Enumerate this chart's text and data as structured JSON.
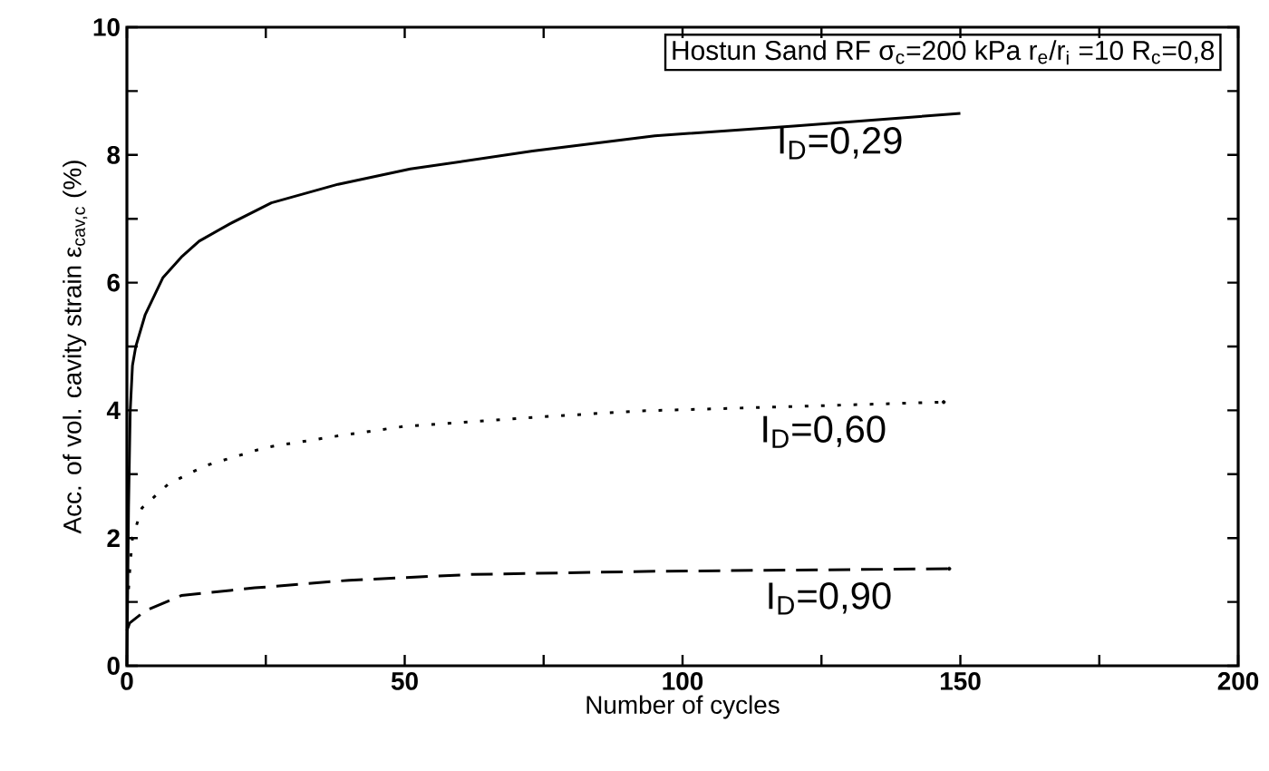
{
  "chart_data": {
    "type": "line",
    "title": "Hostun Sand RF   σ$_{c}$=200 kPa   r$_{e}$/r$_{i}$ =10   R$_{c}$=0,8",
    "xlabel": "Number of cycles",
    "ylabel": "Acc. of vol. cavity strain  ε$_{cav,c}$ (%)",
    "xlim": [
      0,
      200
    ],
    "ylim": [
      0,
      10
    ],
    "xticks": [
      0,
      {
        "value": 25,
        "label": null
      },
      50,
      {
        "value": 75,
        "label": null
      },
      100,
      {
        "value": 125,
        "label": null
      },
      150,
      {
        "value": 175,
        "label": null
      },
      200
    ],
    "yticks": [
      0,
      {
        "value": 1,
        "label": null
      },
      2,
      {
        "value": 3,
        "label": null
      },
      4,
      {
        "value": 5,
        "label": null
      },
      6,
      {
        "value": 7,
        "label": null
      },
      8,
      {
        "value": 9,
        "label": null
      },
      10
    ],
    "grid": false,
    "legend": false,
    "marker": "none",
    "series": [
      {
        "name": "I$_{D}$=0,29",
        "color": "#000000",
        "line_style": "solid",
        "x": [
          0,
          0.3,
          0.6,
          1,
          1.6,
          3.3,
          6.5,
          9.8,
          13,
          18.5,
          26,
          38,
          51,
          73,
          95,
          120,
          150
        ],
        "values": [
          0,
          2.5,
          4,
          4.7,
          5.0,
          5.5,
          6.08,
          6.4,
          6.65,
          6.92,
          7.25,
          7.54,
          7.78,
          8.06,
          8.3,
          8.45,
          8.65
        ]
      },
      {
        "name": "I$_{D}$=0,60",
        "color": "#000000",
        "line_style": "dotted",
        "x": [
          0.3,
          0.6,
          1,
          2.7,
          7.5,
          14,
          25,
          38,
          50,
          73,
          92,
          120,
          147
        ],
        "values": [
          1.2,
          1.6,
          2.0,
          2.47,
          2.85,
          3.13,
          3.42,
          3.6,
          3.75,
          3.89,
          3.99,
          4.06,
          4.13
        ]
      },
      {
        "name": "I$_{D}$=0,90",
        "color": "#000000",
        "line_style": "dashed",
        "x": [
          0,
          0.5,
          3.3,
          9.8,
          23,
          40,
          62,
          95,
          148
        ],
        "values": [
          0.55,
          0.67,
          0.86,
          1.1,
          1.22,
          1.34,
          1.43,
          1.48,
          1.52
        ]
      }
    ]
  }
}
